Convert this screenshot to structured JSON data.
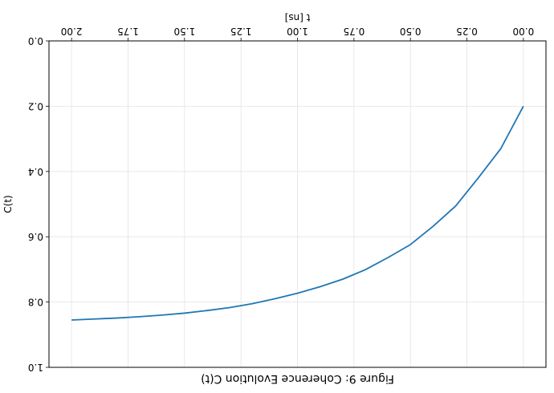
{
  "chart_data": {
    "type": "line",
    "title": "Figure 9: Coherence Evolution C(t)",
    "xlabel": "t [ns]",
    "ylabel": "C(t)",
    "xlim": [
      -0.1,
      2.1
    ],
    "ylim": [
      0.0,
      1.0
    ],
    "x_ticks": [
      "0.00",
      "0.25",
      "0.50",
      "0.75",
      "1.00",
      "1.25",
      "1.50",
      "1.75",
      "2.00"
    ],
    "y_ticks": [
      "0.0",
      "0.2",
      "0.4",
      "0.6",
      "0.8",
      "1.0"
    ],
    "grid": true,
    "orientation": "rotated 180 degrees",
    "series": [
      {
        "color": "#1f77b4",
        "x": [
          0.0,
          0.1,
          0.2,
          0.3,
          0.4,
          0.5,
          0.6,
          0.7,
          0.8,
          0.9,
          1.0,
          1.1,
          1.2,
          1.3,
          1.4,
          1.5,
          1.6,
          1.7,
          1.8,
          1.9,
          2.0
        ],
        "y": [
          0.2,
          0.33,
          0.42,
          0.506,
          0.568,
          0.624,
          0.664,
          0.701,
          0.73,
          0.753,
          0.773,
          0.79,
          0.805,
          0.817,
          0.826,
          0.834,
          0.84,
          0.845,
          0.849,
          0.852,
          0.855
        ]
      }
    ]
  }
}
